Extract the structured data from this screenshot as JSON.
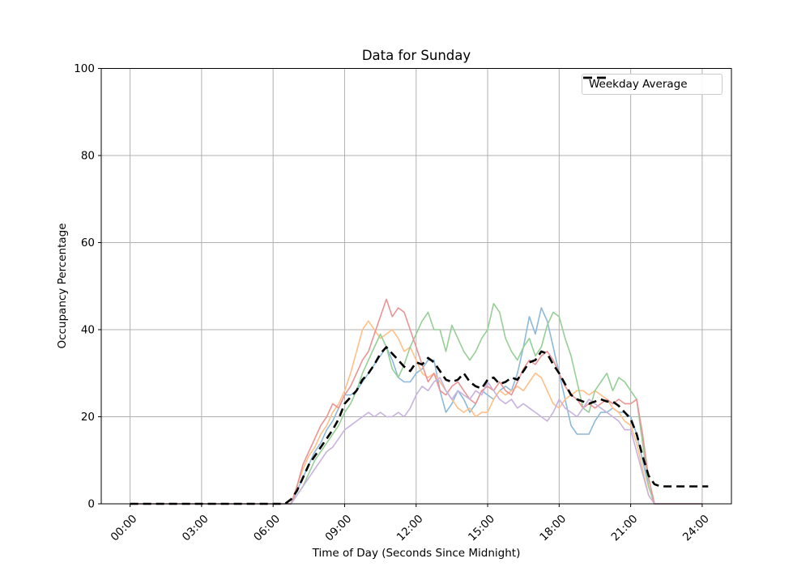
{
  "window": {
    "background": "#ffffff"
  },
  "chart_data": {
    "type": "line",
    "title": "Data for Sunday",
    "xlabel": "Time of Day (Seconds Since Midnight)",
    "ylabel": "Occupancy Percentage",
    "x_axis": {
      "tick_labels": [
        "00:00",
        "03:00",
        "06:00",
        "09:00",
        "12:00",
        "15:00",
        "18:00",
        "21:00",
        "24:00"
      ],
      "tick_hours": [
        0,
        3,
        6,
        9,
        12,
        15,
        18,
        21,
        24
      ],
      "range_hours": [
        0,
        24
      ]
    },
    "y_axis": {
      "ticks": [
        0,
        20,
        40,
        60,
        80,
        100
      ],
      "lim": [
        0,
        100
      ]
    },
    "grid": true,
    "grid_color": "#b0b0b0",
    "legend": {
      "position": "upper right",
      "entries": [
        {
          "label": "Weekday Average",
          "line_style": "dashed",
          "color": "#000000"
        }
      ]
    },
    "sample_step_hours": 0.25,
    "series": [
      {
        "name": "sunday-line-blue",
        "color": "#8cb9da",
        "values": [
          0,
          0,
          0,
          0,
          0,
          0,
          0,
          0,
          0,
          0,
          0,
          0,
          0,
          0,
          0,
          0,
          0,
          0,
          0,
          0,
          0,
          0,
          0,
          0,
          0,
          0,
          0,
          0,
          3,
          6,
          9,
          12,
          14,
          17,
          19,
          22,
          25,
          25,
          26,
          28,
          30,
          32,
          34,
          36,
          33,
          29,
          28,
          28,
          30,
          31,
          33,
          33,
          26,
          21,
          23,
          26,
          24,
          21,
          23,
          26,
          25,
          24,
          26,
          27,
          26,
          30,
          36,
          43,
          39,
          45,
          42,
          36,
          30,
          24,
          18,
          16,
          16,
          16,
          19,
          21,
          21,
          22,
          21,
          21,
          20,
          16,
          10,
          4,
          0,
          0,
          0,
          0,
          0,
          0,
          0,
          0,
          0
        ]
      },
      {
        "name": "sunday-line-orange",
        "color": "#ffbf86",
        "values": [
          0,
          0,
          0,
          0,
          0,
          0,
          0,
          0,
          0,
          0,
          0,
          0,
          0,
          0,
          0,
          0,
          0,
          0,
          0,
          0,
          0,
          0,
          0,
          0,
          0,
          0,
          0,
          0,
          4,
          8,
          11,
          13,
          16,
          18,
          21,
          23,
          26,
          30,
          35,
          40,
          42,
          40,
          38,
          39,
          40,
          38,
          35,
          36,
          33,
          30,
          29,
          30,
          28,
          26,
          24,
          22,
          21,
          22,
          20,
          21,
          21,
          24,
          26,
          25,
          26,
          27,
          26,
          28,
          30,
          29,
          26,
          23,
          22,
          24,
          25,
          26,
          26,
          25,
          26,
          25,
          24,
          22,
          21,
          19,
          18,
          14,
          8,
          2,
          0,
          0,
          0,
          0,
          0,
          0,
          0,
          0,
          0
        ]
      },
      {
        "name": "sunday-line-green",
        "color": "#95cf95",
        "values": [
          0,
          0,
          0,
          0,
          0,
          0,
          0,
          0,
          0,
          0,
          0,
          0,
          0,
          0,
          0,
          0,
          0,
          0,
          0,
          0,
          0,
          0,
          0,
          0,
          0,
          0,
          0,
          0,
          2,
          4,
          7,
          10,
          12,
          14,
          16,
          18,
          21,
          23,
          26,
          30,
          33,
          36,
          39,
          36,
          31,
          29,
          32,
          36,
          39,
          42,
          44,
          40,
          40,
          35,
          41,
          38,
          35,
          33,
          35,
          38,
          40,
          46,
          44,
          38,
          35,
          33,
          36,
          38,
          34,
          36,
          41,
          44,
          43,
          38,
          34,
          28,
          22,
          21,
          26,
          28,
          30,
          26,
          29,
          28,
          26,
          24,
          14,
          4,
          0,
          0,
          0,
          0,
          0,
          0,
          0,
          0,
          0
        ]
      },
      {
        "name": "sunday-line-red",
        "color": "#ea9394",
        "values": [
          0,
          0,
          0,
          0,
          0,
          0,
          0,
          0,
          0,
          0,
          0,
          0,
          0,
          0,
          0,
          0,
          0,
          0,
          0,
          0,
          0,
          0,
          0,
          0,
          0,
          0,
          0,
          0,
          4,
          9,
          12,
          15,
          18,
          20,
          23,
          22,
          25,
          27,
          30,
          33,
          35,
          39,
          43,
          47,
          43,
          45,
          44,
          40,
          36,
          32,
          28,
          30,
          26,
          25,
          27,
          28,
          26,
          24,
          23,
          26,
          27,
          26,
          28,
          26,
          25,
          28,
          31,
          33,
          32,
          34,
          35,
          33,
          30,
          27,
          25,
          24,
          22,
          23,
          22,
          23,
          24,
          23,
          24,
          23,
          23,
          24,
          16,
          6,
          0,
          0,
          0,
          0,
          0,
          0,
          0,
          0,
          0
        ]
      },
      {
        "name": "sunday-line-purple",
        "color": "#c7b2dd",
        "values": [
          0,
          0,
          0,
          0,
          0,
          0,
          0,
          0,
          0,
          0,
          0,
          0,
          0,
          0,
          0,
          0,
          0,
          0,
          0,
          0,
          0,
          0,
          0,
          0,
          0,
          0,
          0,
          0,
          2,
          4,
          6,
          8,
          10,
          12,
          13,
          15,
          17,
          18,
          19,
          20,
          21,
          20,
          21,
          20,
          20,
          21,
          20,
          22,
          25,
          27,
          26,
          28,
          29,
          26,
          24,
          26,
          25,
          24,
          26,
          25,
          28,
          26,
          24,
          23,
          24,
          22,
          23,
          22,
          21,
          20,
          19,
          21,
          24,
          22,
          21,
          20,
          22,
          24,
          23,
          22,
          21,
          20,
          19,
          17,
          17,
          12,
          7,
          2,
          0,
          0,
          0,
          0,
          0,
          0,
          0,
          0,
          0
        ]
      }
    ],
    "average": {
      "label": "Weekday Average",
      "color": "#000000",
      "line_style": "dashed",
      "line_width": 2.6,
      "values": [
        0,
        0,
        0,
        0,
        0,
        0,
        0,
        0,
        0,
        0,
        0,
        0,
        0,
        0,
        0,
        0,
        0,
        0,
        0,
        0,
        0,
        0,
        0,
        0,
        0,
        0,
        0,
        1,
        3,
        6,
        9,
        11,
        13,
        15,
        17,
        19.5,
        23,
        24.5,
        26,
        28.5,
        30,
        32,
        34.5,
        36,
        34.5,
        33,
        31.5,
        30.5,
        32.5,
        32,
        33.5,
        32.5,
        30.5,
        28.5,
        28,
        28.5,
        30,
        28,
        27,
        26.5,
        28.5,
        29,
        27.5,
        28,
        29,
        28.5,
        30.5,
        32.5,
        33,
        35,
        34.5,
        32,
        30,
        27.5,
        25,
        24,
        23.5,
        23,
        23.5,
        24,
        23.5,
        23.5,
        22.5,
        21,
        19.5,
        16,
        11,
        6.5,
        4.5,
        4,
        4,
        4,
        4,
        4,
        4,
        4,
        4,
        4
      ]
    }
  }
}
